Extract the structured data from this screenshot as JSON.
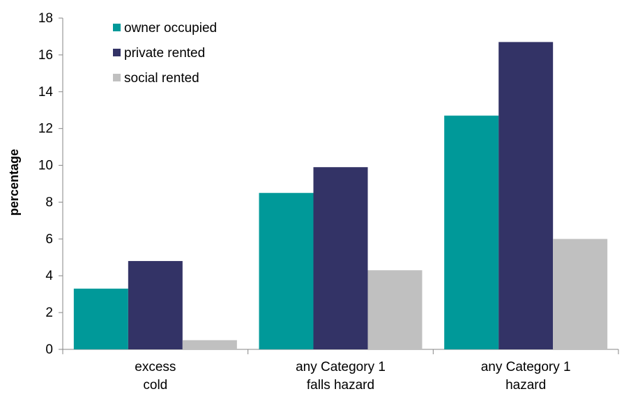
{
  "chart_data": {
    "type": "bar",
    "title": "",
    "xlabel": "",
    "ylabel": "percentage",
    "ylim": [
      0,
      18
    ],
    "y_ticks": [
      0,
      2,
      4,
      6,
      8,
      10,
      12,
      14,
      16,
      18
    ],
    "grid": false,
    "legend_position": "top-left",
    "categories": [
      [
        "excess",
        "cold"
      ],
      [
        "any Category 1",
        "falls hazard"
      ],
      [
        "any Category 1",
        "hazard"
      ]
    ],
    "series": [
      {
        "name": "owner occupied",
        "color": "#009999",
        "values": [
          3.3,
          8.5,
          12.7
        ]
      },
      {
        "name": "private rented",
        "color": "#333366",
        "values": [
          4.8,
          9.9,
          16.7
        ]
      },
      {
        "name": "social rented",
        "color": "#c0c0c0",
        "values": [
          0.5,
          4.3,
          6.0
        ]
      }
    ]
  }
}
